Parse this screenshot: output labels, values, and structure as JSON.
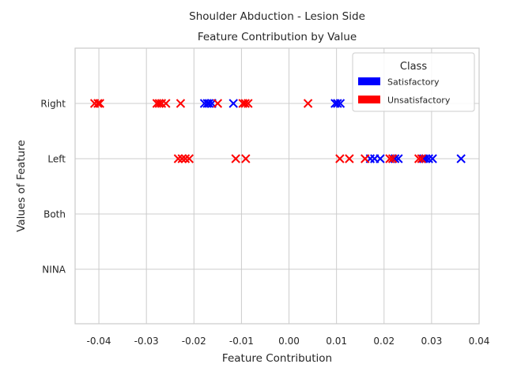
{
  "chart_data": {
    "type": "scatter",
    "title": "Shoulder Abduction - Lesion Side",
    "subtitle": "Feature Contribution by Value",
    "xlabel": "Feature Contribution",
    "ylabel": "Values of Feature",
    "xlim": [
      -0.045,
      0.04
    ],
    "xticks": [
      "-0.04",
      "-0.03",
      "-0.02",
      "-0.01",
      "0.00",
      "0.01",
      "0.02",
      "0.03",
      "0.04"
    ],
    "xtick_values": [
      -0.04,
      -0.03,
      -0.02,
      -0.01,
      0.0,
      0.01,
      0.02,
      0.03,
      0.04
    ],
    "categories": [
      "Right",
      "Left",
      "Both",
      "NINA"
    ],
    "grid": true,
    "marker": "x",
    "legend": {
      "title": "Class",
      "position": "top-right",
      "entries": [
        {
          "label": "Satisfactory",
          "color": "#0000ff"
        },
        {
          "label": "Unsatisfactory",
          "color": "#ff0000"
        }
      ]
    },
    "series": [
      {
        "name": "Satisfactory",
        "color": "#0000ff",
        "points": [
          {
            "x": -0.0178,
            "y": "Right"
          },
          {
            "x": -0.0172,
            "y": "Right"
          },
          {
            "x": -0.0168,
            "y": "Right"
          },
          {
            "x": -0.0162,
            "y": "Right"
          },
          {
            "x": -0.0117,
            "y": "Right"
          },
          {
            "x": 0.0097,
            "y": "Right"
          },
          {
            "x": 0.0102,
            "y": "Right"
          },
          {
            "x": 0.0108,
            "y": "Right"
          },
          {
            "x": 0.0171,
            "y": "Left"
          },
          {
            "x": 0.018,
            "y": "Left"
          },
          {
            "x": 0.0192,
            "y": "Left"
          },
          {
            "x": 0.0223,
            "y": "Left"
          },
          {
            "x": 0.023,
            "y": "Left"
          },
          {
            "x": 0.0283,
            "y": "Left"
          },
          {
            "x": 0.0288,
            "y": "Left"
          },
          {
            "x": 0.0294,
            "y": "Left"
          },
          {
            "x": 0.0302,
            "y": "Left"
          },
          {
            "x": 0.0362,
            "y": "Left"
          }
        ]
      },
      {
        "name": "Unsatisfactory",
        "color": "#ff0000",
        "points": [
          {
            "x": -0.0409,
            "y": "Right"
          },
          {
            "x": -0.0402,
            "y": "Right"
          },
          {
            "x": -0.0398,
            "y": "Right"
          },
          {
            "x": -0.0278,
            "y": "Right"
          },
          {
            "x": -0.0273,
            "y": "Right"
          },
          {
            "x": -0.0268,
            "y": "Right"
          },
          {
            "x": -0.0259,
            "y": "Right"
          },
          {
            "x": -0.0228,
            "y": "Right"
          },
          {
            "x": -0.015,
            "y": "Right"
          },
          {
            "x": -0.0097,
            "y": "Right"
          },
          {
            "x": -0.0092,
            "y": "Right"
          },
          {
            "x": -0.0086,
            "y": "Right"
          },
          {
            "x": 0.004,
            "y": "Right"
          },
          {
            "x": -0.0233,
            "y": "Left"
          },
          {
            "x": -0.0225,
            "y": "Left"
          },
          {
            "x": -0.0218,
            "y": "Left"
          },
          {
            "x": -0.021,
            "y": "Left"
          },
          {
            "x": -0.0112,
            "y": "Left"
          },
          {
            "x": -0.0091,
            "y": "Left"
          },
          {
            "x": 0.0107,
            "y": "Left"
          },
          {
            "x": 0.0127,
            "y": "Left"
          },
          {
            "x": 0.016,
            "y": "Left"
          },
          {
            "x": 0.0212,
            "y": "Left"
          },
          {
            "x": 0.0218,
            "y": "Left"
          },
          {
            "x": 0.0273,
            "y": "Left"
          },
          {
            "x": 0.0279,
            "y": "Left"
          }
        ]
      }
    ]
  }
}
